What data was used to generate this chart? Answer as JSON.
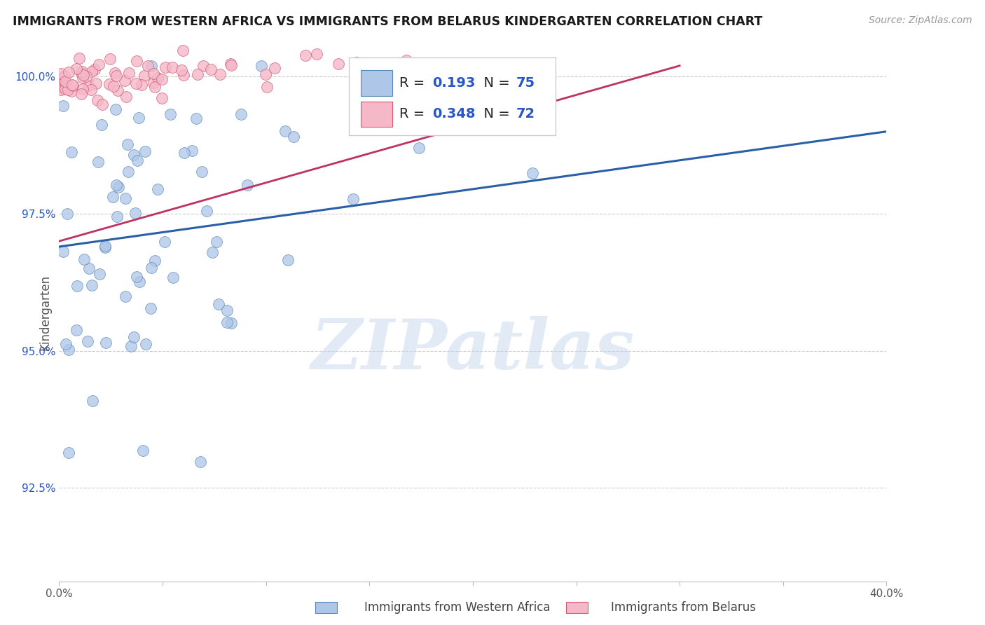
{
  "title": "IMMIGRANTS FROM WESTERN AFRICA VS IMMIGRANTS FROM BELARUS KINDERGARTEN CORRELATION CHART",
  "source_text": "Source: ZipAtlas.com",
  "xlabel_blue": "Immigrants from Western Africa",
  "xlabel_pink": "Immigrants from Belarus",
  "ylabel": "Kindergarten",
  "watermark": "ZIPatlas",
  "xlim": [
    0.0,
    0.4
  ],
  "ylim": [
    0.908,
    1.006
  ],
  "yticks": [
    0.925,
    0.95,
    0.975,
    1.0
  ],
  "ytick_labels": [
    "92.5%",
    "95.0%",
    "97.5%",
    "100.0%"
  ],
  "R_blue": 0.193,
  "N_blue": 75,
  "R_pink": 0.348,
  "N_pink": 72,
  "blue_color": "#aec6e8",
  "blue_edge_color": "#5585b5",
  "pink_color": "#f4b8c8",
  "pink_edge_color": "#d45878",
  "blue_line_color": "#2a5fa8",
  "pink_line_color": "#c03060",
  "legend_R_color": "#2855c8",
  "blue_trend_x": [
    0.0,
    0.4
  ],
  "blue_trend_y": [
    0.969,
    0.99
  ],
  "pink_trend_x": [
    0.0,
    0.3
  ],
  "pink_trend_y": [
    0.97,
    1.002
  ],
  "background_color": "#ffffff",
  "grid_color": "#cccccc",
  "watermark_color": "#c0d4ea",
  "watermark_alpha": 0.45
}
